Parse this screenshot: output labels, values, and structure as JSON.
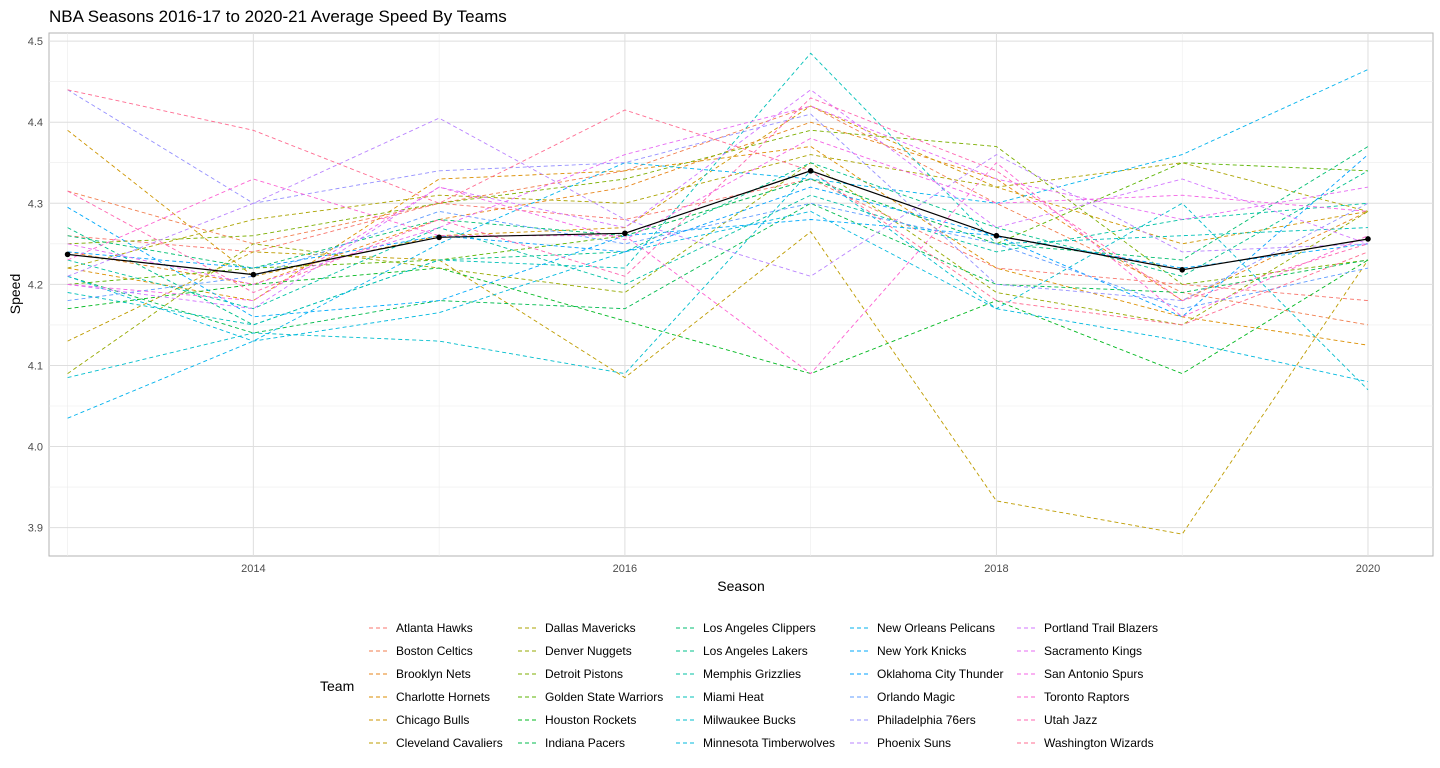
{
  "chart_data": {
    "type": "line",
    "title": "NBA Seasons 2016-17 to 2020-21 Average Speed By Teams",
    "xlabel": "Season",
    "ylabel": "Speed",
    "xlim": [
      2012.9,
      2020.35
    ],
    "ylim": [
      3.865,
      4.51
    ],
    "x_ticks": [
      2014,
      2016,
      2018,
      2020
    ],
    "y_ticks": [
      3.9,
      4.0,
      4.1,
      4.2,
      4.3,
      4.4,
      4.5
    ],
    "x": [
      2013,
      2014,
      2015,
      2016,
      2017,
      2018,
      2019,
      2020
    ],
    "grid": true,
    "legend_title": "Team",
    "legend_position": "bottom",
    "series": [
      {
        "name": "Atlanta Hawks",
        "color": "#F8766D",
        "values": [
          4.26,
          4.24,
          4.3,
          4.28,
          4.33,
          4.22,
          4.2,
          4.18
        ]
      },
      {
        "name": "Boston Celtics",
        "color": "#F17E4E",
        "values": [
          4.315,
          4.25,
          4.3,
          4.34,
          4.42,
          4.3,
          4.19,
          4.15
        ]
      },
      {
        "name": "Brooklyn Nets",
        "color": "#E7861B",
        "values": [
          4.24,
          4.2,
          4.28,
          4.32,
          4.4,
          4.33,
          4.18,
          4.29
        ]
      },
      {
        "name": "Charlotte Hornets",
        "color": "#DB8E00",
        "values": [
          4.22,
          4.18,
          4.33,
          4.34,
          4.37,
          4.22,
          4.16,
          4.125
        ]
      },
      {
        "name": "Chicago Bulls",
        "color": "#CE9500",
        "values": [
          4.39,
          4.21,
          4.26,
          4.27,
          4.42,
          4.32,
          4.25,
          4.29
        ]
      },
      {
        "name": "Cleveland Cavaliers",
        "color": "#BE9C00",
        "values": [
          4.13,
          4.24,
          4.23,
          4.085,
          4.265,
          3.933,
          3.892,
          4.23
        ]
      },
      {
        "name": "Dallas Mavericks",
        "color": "#ABA300",
        "values": [
          4.22,
          4.28,
          4.31,
          4.3,
          4.36,
          4.32,
          4.35,
          4.29
        ]
      },
      {
        "name": "Denver Nuggets",
        "color": "#96A900",
        "values": [
          4.09,
          4.25,
          4.22,
          4.19,
          4.35,
          4.19,
          4.15,
          4.29
        ]
      },
      {
        "name": "Detroit Pistons",
        "color": "#7CAE00",
        "values": [
          4.25,
          4.26,
          4.3,
          4.33,
          4.39,
          4.37,
          4.2,
          4.23
        ]
      },
      {
        "name": "Golden State Warriors",
        "color": "#5BB300",
        "values": [
          4.2,
          4.22,
          4.23,
          4.26,
          4.33,
          4.25,
          4.35,
          4.34
        ]
      },
      {
        "name": "Houston Rockets",
        "color": "#00B81F",
        "values": [
          4.17,
          4.2,
          4.22,
          4.155,
          4.09,
          4.18,
          4.09,
          4.23
        ]
      },
      {
        "name": "Indiana Pacers",
        "color": "#00BB4E",
        "values": [
          4.21,
          4.14,
          4.18,
          4.17,
          4.3,
          4.2,
          4.19,
          4.23
        ]
      },
      {
        "name": "Los Angeles Clippers",
        "color": "#00BE70",
        "values": [
          4.26,
          4.22,
          4.28,
          4.26,
          4.33,
          4.25,
          4.23,
          4.37
        ]
      },
      {
        "name": "Los Angeles Lakers",
        "color": "#00C08B",
        "values": [
          4.27,
          4.15,
          4.23,
          4.24,
          4.35,
          4.27,
          4.21,
          4.34
        ]
      },
      {
        "name": "Memphis Grizzlies",
        "color": "#00C1A3",
        "values": [
          4.23,
          4.17,
          4.27,
          4.2,
          4.31,
          4.24,
          4.28,
          4.3
        ]
      },
      {
        "name": "Miami Heat",
        "color": "#00C0B8",
        "values": [
          4.19,
          4.15,
          4.23,
          4.22,
          4.485,
          4.25,
          4.26,
          4.27
        ]
      },
      {
        "name": "Milwaukee Bucks",
        "color": "#00BDCC",
        "values": [
          4.085,
          4.14,
          4.13,
          4.09,
          4.34,
          4.17,
          4.3,
          4.07
        ]
      },
      {
        "name": "Minnesota Timberwolves",
        "color": "#00B8DE",
        "values": [
          4.21,
          4.13,
          4.165,
          4.24,
          4.29,
          4.17,
          4.13,
          4.08
        ]
      },
      {
        "name": "New Orleans Pelicans",
        "color": "#00B2ED",
        "values": [
          4.035,
          4.13,
          4.25,
          4.35,
          4.33,
          4.3,
          4.36,
          4.465
        ]
      },
      {
        "name": "New York Knicks",
        "color": "#00A9FB",
        "values": [
          4.295,
          4.16,
          4.18,
          4.26,
          4.28,
          4.26,
          4.22,
          4.25
        ]
      },
      {
        "name": "Oklahoma City Thunder",
        "color": "#00A0FF",
        "values": [
          4.24,
          4.22,
          4.26,
          4.24,
          4.32,
          4.26,
          4.16,
          4.36
        ]
      },
      {
        "name": "Orlando Magic",
        "color": "#619CFF",
        "values": [
          4.18,
          4.21,
          4.29,
          4.25,
          4.3,
          4.25,
          4.17,
          4.22
        ]
      },
      {
        "name": "Philadelphia 76ers",
        "color": "#9590FF",
        "values": [
          4.44,
          4.3,
          4.34,
          4.35,
          4.41,
          4.2,
          4.18,
          4.3
        ]
      },
      {
        "name": "Phoenix Suns",
        "color": "#B983FF",
        "values": [
          4.21,
          4.3,
          4.405,
          4.28,
          4.21,
          4.36,
          4.24,
          4.25
        ]
      },
      {
        "name": "Portland Trail Blazers",
        "color": "#D376FF",
        "values": [
          4.2,
          4.17,
          4.32,
          4.27,
          4.44,
          4.27,
          4.33,
          4.25
        ]
      },
      {
        "name": "Sacramento Kings",
        "color": "#E76BF3",
        "values": [
          4.25,
          4.2,
          4.27,
          4.36,
          4.42,
          4.33,
          4.28,
          4.32
        ]
      },
      {
        "name": "San Antonio Spurs",
        "color": "#F463E5",
        "values": [
          4.2,
          4.18,
          4.32,
          4.255,
          4.38,
          4.3,
          4.31,
          4.29
        ]
      },
      {
        "name": "Toronto Raptors",
        "color": "#FD61D1",
        "values": [
          4.23,
          4.33,
          4.26,
          4.26,
          4.09,
          4.35,
          4.16,
          4.26
        ]
      },
      {
        "name": "Utah Jazz",
        "color": "#FF64B0",
        "values": [
          4.315,
          4.19,
          4.28,
          4.21,
          4.43,
          4.34,
          4.18,
          4.25
        ]
      },
      {
        "name": "Washington Wizards",
        "color": "#FF6C91",
        "values": [
          4.44,
          4.39,
          4.3,
          4.415,
          4.34,
          4.18,
          4.15,
          4.24
        ]
      }
    ],
    "average_line": {
      "color": "#000000",
      "values": [
        4.237,
        4.212,
        4.258,
        4.263,
        4.34,
        4.26,
        4.218,
        4.256
      ]
    }
  }
}
